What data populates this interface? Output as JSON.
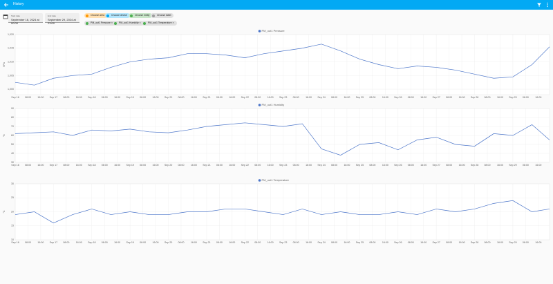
{
  "header": {
    "title": "History"
  },
  "start": {
    "label": "Start date",
    "value": "September 16, 2024 at 00:00"
  },
  "end": {
    "label": "End date",
    "value": "September 29, 2024 at 23:00"
  },
  "pickers": [
    "Choose area",
    "Choose device",
    "Choose entity",
    "Choose label"
  ],
  "targets": [
    "PM_out1 Pressure",
    "PM_out1 Humidity",
    "PM_out1 Temperature"
  ],
  "chart_data": [
    {
      "type": "line",
      "ylabel": "hPa",
      "xlim": [
        0,
        335
      ],
      "ylim": [
        998,
        1020
      ],
      "yticks": [
        {
          "value": 1000,
          "label": "1,000"
        },
        {
          "value": 1005,
          "label": "1,005"
        },
        {
          "value": 1010,
          "label": "1,010"
        },
        {
          "value": 1015,
          "label": "1,015"
        },
        {
          "value": 1020,
          "label": "1,020"
        }
      ],
      "xticks": [
        {
          "value": 0,
          "label": "Sep 16"
        },
        {
          "value": 8,
          "label": "08:00"
        },
        {
          "value": 16,
          "label": "16:00"
        },
        {
          "value": 24,
          "label": "Sep 17"
        },
        {
          "value": 32,
          "label": "08:00"
        },
        {
          "value": 40,
          "label": "16:00"
        },
        {
          "value": 48,
          "label": "Sep 18"
        },
        {
          "value": 56,
          "label": "08:00"
        },
        {
          "value": 64,
          "label": "16:00"
        },
        {
          "value": 72,
          "label": "Sep 19"
        },
        {
          "value": 80,
          "label": "08:00"
        },
        {
          "value": 88,
          "label": "16:00"
        },
        {
          "value": 96,
          "label": "Sep 20"
        },
        {
          "value": 104,
          "label": "08:00"
        },
        {
          "value": 112,
          "label": "16:00"
        },
        {
          "value": 120,
          "label": "Sep 21"
        },
        {
          "value": 128,
          "label": "08:00"
        },
        {
          "value": 136,
          "label": "16:00"
        },
        {
          "value": 144,
          "label": "Sep 22"
        },
        {
          "value": 152,
          "label": "08:00"
        },
        {
          "value": 160,
          "label": "16:00"
        },
        {
          "value": 168,
          "label": "Sep 23"
        },
        {
          "value": 176,
          "label": "08:00"
        },
        {
          "value": 184,
          "label": "16:00"
        },
        {
          "value": 192,
          "label": "Sep 24"
        },
        {
          "value": 200,
          "label": "08:00"
        },
        {
          "value": 208,
          "label": "16:00"
        },
        {
          "value": 216,
          "label": "Sep 25"
        },
        {
          "value": 224,
          "label": "08:00"
        },
        {
          "value": 232,
          "label": "16:00"
        },
        {
          "value": 240,
          "label": "Sep 26"
        },
        {
          "value": 248,
          "label": "08:00"
        },
        {
          "value": 256,
          "label": "16:00"
        },
        {
          "value": 264,
          "label": "Sep 27"
        },
        {
          "value": 272,
          "label": "08:00"
        },
        {
          "value": 280,
          "label": "16:00"
        },
        {
          "value": 288,
          "label": "Sep 28"
        },
        {
          "value": 296,
          "label": "08:00"
        },
        {
          "value": 304,
          "label": "16:00"
        },
        {
          "value": 312,
          "label": "Sep 29"
        },
        {
          "value": 320,
          "label": "08:00"
        },
        {
          "value": 328,
          "label": "16:00"
        }
      ],
      "x": [
        0,
        12,
        24,
        36,
        48,
        60,
        72,
        84,
        96,
        108,
        120,
        132,
        144,
        156,
        168,
        180,
        192,
        204,
        216,
        228,
        240,
        252,
        264,
        276,
        288,
        300,
        312,
        324,
        335
      ],
      "series": [
        {
          "name": "PM_out1 Pressure",
          "color": "#4a74c9",
          "values": [
            1002.5,
            1001.5,
            1004,
            1005,
            1005.5,
            1008,
            1010,
            1011,
            1011.5,
            1013,
            1013,
            1012.5,
            1011.5,
            1013,
            1014,
            1015,
            1016.5,
            1014,
            1011,
            1009,
            1007.5,
            1008.5,
            1008,
            1007,
            1005.5,
            1004,
            1004.5,
            1009,
            1015.5
          ]
        }
      ]
    },
    {
      "type": "line",
      "ylabel": "%",
      "xlim": [
        0,
        335
      ],
      "ylim": [
        30,
        90
      ],
      "yticks": [
        30,
        40,
        50,
        60,
        70,
        80,
        90
      ],
      "xticks": [
        {
          "value": 0,
          "label": "Sep 16"
        },
        {
          "value": 8,
          "label": "08:00"
        },
        {
          "value": 16,
          "label": "16:00"
        },
        {
          "value": 24,
          "label": "Sep 17"
        },
        {
          "value": 32,
          "label": "08:00"
        },
        {
          "value": 40,
          "label": "16:00"
        },
        {
          "value": 48,
          "label": "Sep 18"
        },
        {
          "value": 56,
          "label": "08:00"
        },
        {
          "value": 64,
          "label": "16:00"
        },
        {
          "value": 72,
          "label": "Sep 19"
        },
        {
          "value": 80,
          "label": "08:00"
        },
        {
          "value": 88,
          "label": "16:00"
        },
        {
          "value": 96,
          "label": "Sep 20"
        },
        {
          "value": 104,
          "label": "08:00"
        },
        {
          "value": 112,
          "label": "16:00"
        },
        {
          "value": 120,
          "label": "Sep 21"
        },
        {
          "value": 128,
          "label": "08:00"
        },
        {
          "value": 136,
          "label": "16:00"
        },
        {
          "value": 144,
          "label": "Sep 22"
        },
        {
          "value": 152,
          "label": "08:00"
        },
        {
          "value": 160,
          "label": "16:00"
        },
        {
          "value": 168,
          "label": "Sep 23"
        },
        {
          "value": 176,
          "label": "08:00"
        },
        {
          "value": 184,
          "label": "16:00"
        },
        {
          "value": 192,
          "label": "Sep 24"
        },
        {
          "value": 200,
          "label": "08:00"
        },
        {
          "value": 208,
          "label": "16:00"
        },
        {
          "value": 216,
          "label": "Sep 25"
        },
        {
          "value": 224,
          "label": "08:00"
        },
        {
          "value": 232,
          "label": "16:00"
        },
        {
          "value": 240,
          "label": "Sep 26"
        },
        {
          "value": 248,
          "label": "08:00"
        },
        {
          "value": 256,
          "label": "16:00"
        },
        {
          "value": 264,
          "label": "Sep 27"
        },
        {
          "value": 272,
          "label": "08:00"
        },
        {
          "value": 280,
          "label": "16:00"
        },
        {
          "value": 288,
          "label": "Sep 28"
        },
        {
          "value": 296,
          "label": "08:00"
        },
        {
          "value": 304,
          "label": "16:00"
        },
        {
          "value": 312,
          "label": "Sep 29"
        },
        {
          "value": 320,
          "label": "08:00"
        },
        {
          "value": 328,
          "label": "16:00"
        }
      ],
      "x": [
        0,
        12,
        24,
        36,
        48,
        60,
        72,
        84,
        96,
        108,
        120,
        132,
        144,
        156,
        168,
        180,
        192,
        204,
        216,
        228,
        240,
        252,
        264,
        276,
        288,
        300,
        312,
        324,
        335
      ],
      "series": [
        {
          "name": "PM_out1 Humidity",
          "color": "#4a74c9",
          "values": [
            62,
            63,
            64,
            60,
            66,
            65,
            67,
            64,
            63,
            66,
            70,
            72,
            74,
            72,
            70,
            73,
            45,
            38,
            50,
            52,
            44,
            55,
            58,
            50,
            48,
            62,
            60,
            72,
            55
          ]
        }
      ]
    },
    {
      "type": "line",
      "ylabel": "°C",
      "xlim": [
        0,
        335
      ],
      "ylim": [
        10,
        30
      ],
      "yticks": [
        10,
        15,
        20,
        25,
        30
      ],
      "xticks": [
        {
          "value": 0,
          "label": "Sep 16"
        },
        {
          "value": 8,
          "label": "08:00"
        },
        {
          "value": 16,
          "label": "16:00"
        },
        {
          "value": 24,
          "label": "Sep 17"
        },
        {
          "value": 32,
          "label": "08:00"
        },
        {
          "value": 40,
          "label": "16:00"
        },
        {
          "value": 48,
          "label": "Sep 18"
        },
        {
          "value": 56,
          "label": "08:00"
        },
        {
          "value": 64,
          "label": "16:00"
        },
        {
          "value": 72,
          "label": "Sep 19"
        },
        {
          "value": 80,
          "label": "08:00"
        },
        {
          "value": 88,
          "label": "16:00"
        },
        {
          "value": 96,
          "label": "Sep 20"
        },
        {
          "value": 104,
          "label": "08:00"
        },
        {
          "value": 112,
          "label": "16:00"
        },
        {
          "value": 120,
          "label": "Sep 21"
        },
        {
          "value": 128,
          "label": "08:00"
        },
        {
          "value": 136,
          "label": "16:00"
        },
        {
          "value": 144,
          "label": "Sep 22"
        },
        {
          "value": 152,
          "label": "08:00"
        },
        {
          "value": 160,
          "label": "16:00"
        },
        {
          "value": 168,
          "label": "Sep 23"
        },
        {
          "value": 176,
          "label": "08:00"
        },
        {
          "value": 184,
          "label": "16:00"
        },
        {
          "value": 192,
          "label": "Sep 24"
        },
        {
          "value": 200,
          "label": "08:00"
        },
        {
          "value": 208,
          "label": "16:00"
        },
        {
          "value": 216,
          "label": "Sep 25"
        },
        {
          "value": 224,
          "label": "08:00"
        },
        {
          "value": 232,
          "label": "16:00"
        },
        {
          "value": 240,
          "label": "Sep 26"
        },
        {
          "value": 248,
          "label": "08:00"
        },
        {
          "value": 256,
          "label": "16:00"
        },
        {
          "value": 264,
          "label": "Sep 27"
        },
        {
          "value": 272,
          "label": "08:00"
        },
        {
          "value": 280,
          "label": "16:00"
        },
        {
          "value": 288,
          "label": "Sep 28"
        },
        {
          "value": 296,
          "label": "08:00"
        },
        {
          "value": 304,
          "label": "16:00"
        },
        {
          "value": 312,
          "label": "Sep 29"
        },
        {
          "value": 320,
          "label": "08:00"
        },
        {
          "value": 328,
          "label": "16:00"
        }
      ],
      "x": [
        0,
        12,
        24,
        36,
        48,
        60,
        72,
        84,
        96,
        108,
        120,
        132,
        144,
        156,
        168,
        180,
        192,
        204,
        216,
        228,
        240,
        252,
        264,
        276,
        288,
        300,
        312,
        324,
        335
      ],
      "series": [
        {
          "name": "PM_out1 Temperature",
          "color": "#4a74c9",
          "values": [
            19,
            20,
            16,
            19,
            21,
            19,
            20,
            19,
            19,
            20,
            20,
            21,
            21,
            20,
            19,
            21,
            19,
            20,
            19,
            19,
            20,
            19,
            21,
            20,
            21,
            23,
            24,
            20,
            21
          ]
        }
      ]
    }
  ]
}
